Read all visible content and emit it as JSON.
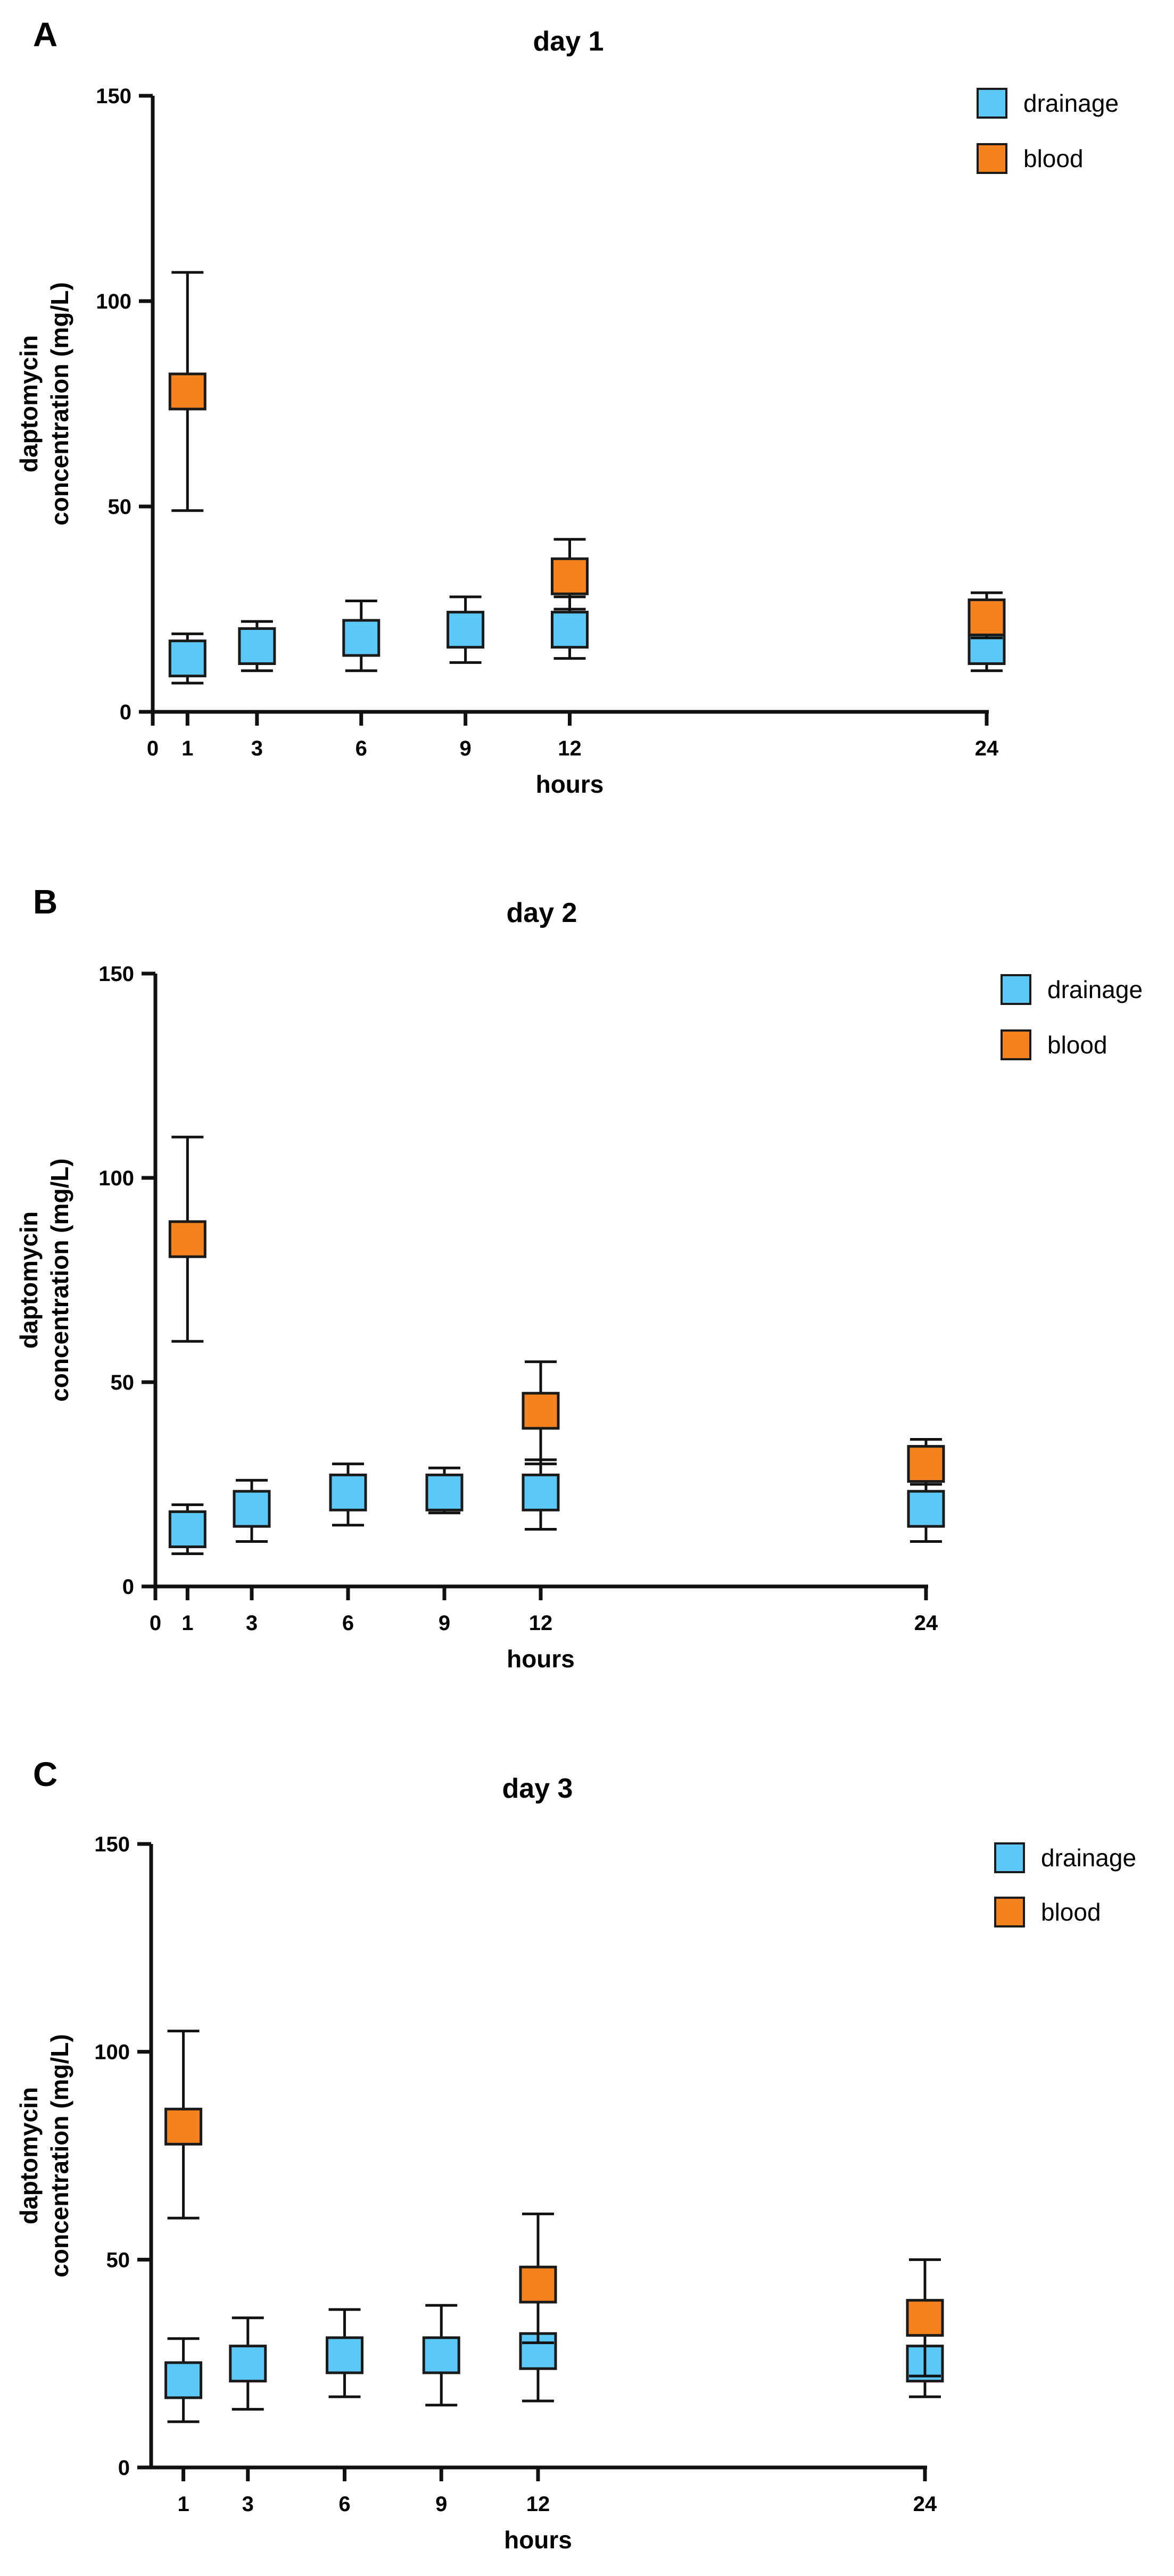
{
  "chart_data": [
    {
      "type": "scatter",
      "panel": "A",
      "title": "day 1",
      "xlabel": "hours",
      "ylabel_line1": "daptomycin",
      "ylabel_line2": "concentration (mg/L)",
      "xticks": [
        0,
        1,
        3,
        6,
        9,
        12,
        24
      ],
      "xlim": [
        0,
        24
      ],
      "yticks": [
        0,
        50,
        100,
        150
      ],
      "ylim": [
        0,
        150
      ],
      "grid": false,
      "legend_position": "top-right",
      "series": [
        {
          "name": "drainage",
          "color": "#5BC8F5",
          "points": [
            {
              "x": 1,
              "y": 13,
              "err_low": 7,
              "err_high": 19
            },
            {
              "x": 3,
              "y": 16,
              "err_low": 10,
              "err_high": 22
            },
            {
              "x": 6,
              "y": 18,
              "err_low": 10,
              "err_high": 27
            },
            {
              "x": 9,
              "y": 20,
              "err_low": 12,
              "err_high": 28
            },
            {
              "x": 12,
              "y": 20,
              "err_low": 13,
              "err_high": 28
            },
            {
              "x": 24,
              "y": 16,
              "err_low": 10,
              "err_high": 25
            }
          ]
        },
        {
          "name": "blood",
          "color": "#F5821F",
          "points": [
            {
              "x": 1,
              "y": 78,
              "err_low": 49,
              "err_high": 107
            },
            {
              "x": 12,
              "y": 33,
              "err_low": 25,
              "err_high": 42
            },
            {
              "x": 24,
              "y": 23,
              "err_low": 18,
              "err_high": 29
            }
          ]
        }
      ]
    },
    {
      "type": "scatter",
      "panel": "B",
      "title": "day 2",
      "xlabel": "hours",
      "ylabel_line1": "daptomycin",
      "ylabel_line2": "concentration (mg/L)",
      "xticks": [
        0,
        1,
        3,
        6,
        9,
        12,
        24
      ],
      "xlim": [
        0,
        24
      ],
      "yticks": [
        0,
        50,
        100,
        150
      ],
      "ylim": [
        0,
        150
      ],
      "grid": false,
      "legend_position": "top-right",
      "series": [
        {
          "name": "drainage",
          "color": "#5BC8F5",
          "points": [
            {
              "x": 1,
              "y": 14,
              "err_low": 8,
              "err_high": 20
            },
            {
              "x": 3,
              "y": 19,
              "err_low": 11,
              "err_high": 26
            },
            {
              "x": 6,
              "y": 23,
              "err_low": 15,
              "err_high": 30
            },
            {
              "x": 9,
              "y": 23,
              "err_low": 18,
              "err_high": 29
            },
            {
              "x": 12,
              "y": 23,
              "err_low": 14,
              "err_high": 31
            },
            {
              "x": 24,
              "y": 19,
              "err_low": 11,
              "err_high": 27
            }
          ]
        },
        {
          "name": "blood",
          "color": "#F5821F",
          "points": [
            {
              "x": 1,
              "y": 85,
              "err_low": 60,
              "err_high": 110
            },
            {
              "x": 12,
              "y": 43,
              "err_low": 30,
              "err_high": 55
            },
            {
              "x": 24,
              "y": 30,
              "err_low": 25,
              "err_high": 36
            }
          ]
        }
      ]
    },
    {
      "type": "scatter",
      "panel": "C",
      "title": "day 3",
      "xlabel": "hours",
      "ylabel_line1": "daptomycin",
      "ylabel_line2": "concentration (mg/L)",
      "xticks": [
        1,
        3,
        6,
        9,
        12,
        24
      ],
      "xlim": [
        0,
        24
      ],
      "yticks": [
        0,
        50,
        100,
        150
      ],
      "ylim": [
        0,
        150
      ],
      "grid": false,
      "legend_position": "top-right",
      "series": [
        {
          "name": "drainage",
          "color": "#5BC8F5",
          "points": [
            {
              "x": 1,
              "y": 21,
              "err_low": 11,
              "err_high": 31
            },
            {
              "x": 3,
              "y": 25,
              "err_low": 14,
              "err_high": 36
            },
            {
              "x": 6,
              "y": 27,
              "err_low": 17,
              "err_high": 38
            },
            {
              "x": 9,
              "y": 27,
              "err_low": 15,
              "err_high": 39
            },
            {
              "x": 12,
              "y": 28,
              "err_low": 16,
              "err_high": 40
            },
            {
              "x": 24,
              "y": 25,
              "err_low": 17,
              "err_high": 33
            }
          ]
        },
        {
          "name": "blood",
          "color": "#F5821F",
          "points": [
            {
              "x": 1,
              "y": 82,
              "err_low": 60,
              "err_high": 105
            },
            {
              "x": 12,
              "y": 44,
              "err_low": 30,
              "err_high": 61
            },
            {
              "x": 24,
              "y": 36,
              "err_low": 22,
              "err_high": 50
            }
          ]
        }
      ]
    }
  ]
}
